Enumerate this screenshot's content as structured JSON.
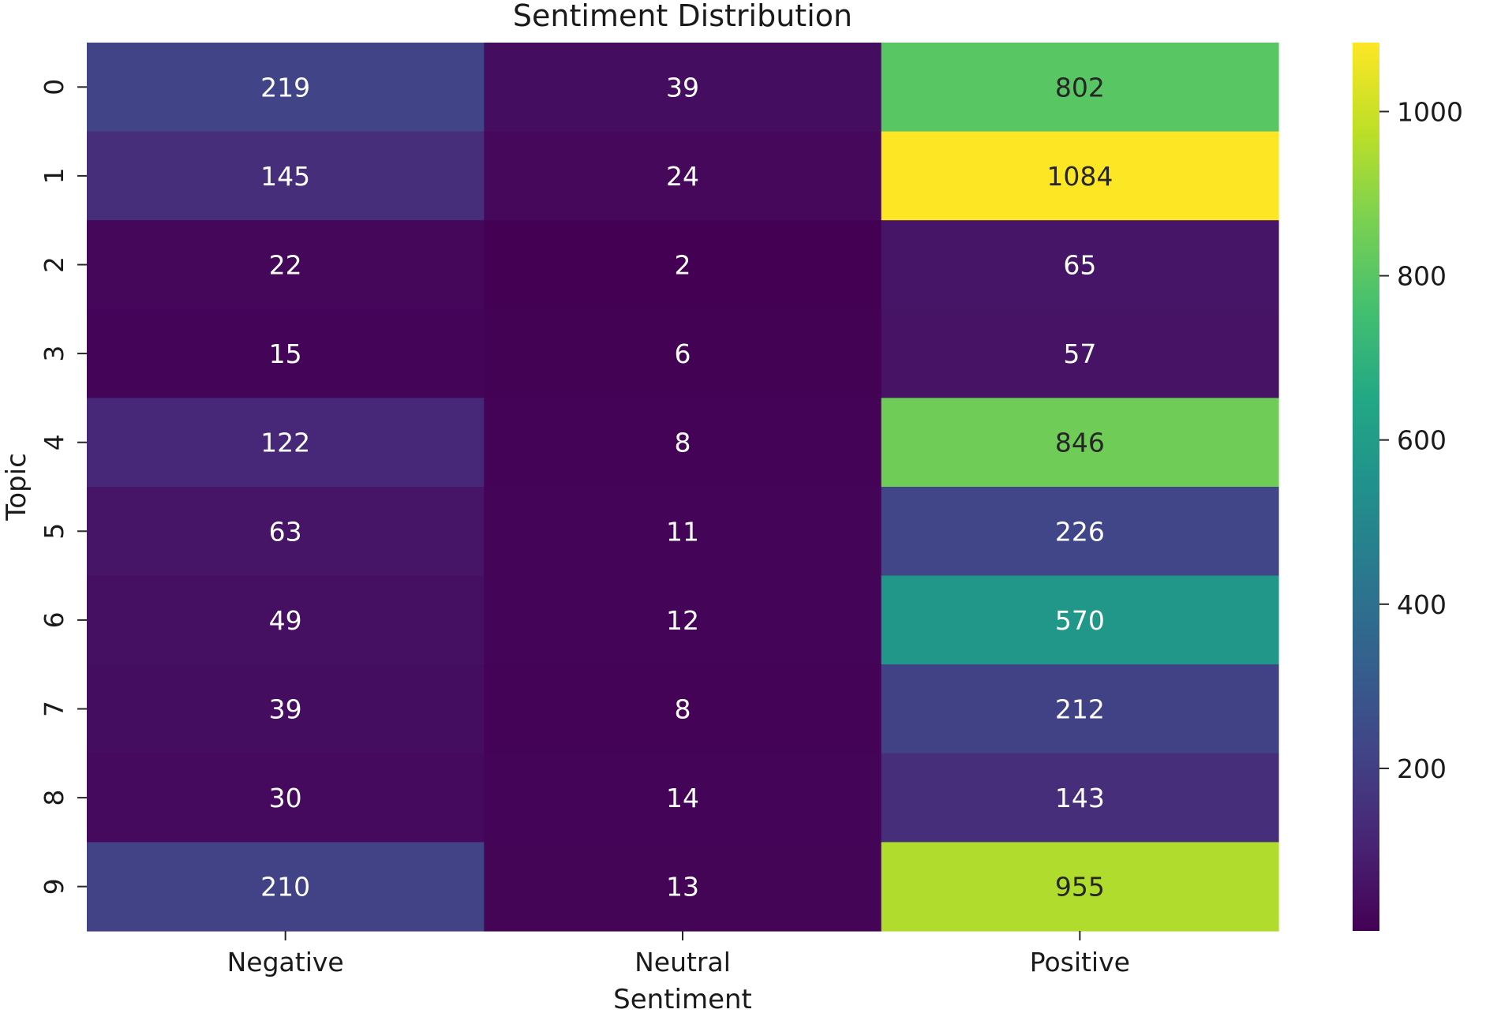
{
  "chart_data": {
    "type": "heatmap",
    "title": "Sentiment Distribution",
    "xlabel": "Sentiment",
    "ylabel": "Topic",
    "x_categories": [
      "Negative",
      "Neutral",
      "Positive"
    ],
    "y_categories": [
      "0",
      "1",
      "2",
      "3",
      "4",
      "5",
      "6",
      "7",
      "8",
      "9"
    ],
    "values": [
      [
        219,
        39,
        802
      ],
      [
        145,
        24,
        1084
      ],
      [
        22,
        2,
        65
      ],
      [
        15,
        6,
        57
      ],
      [
        122,
        8,
        846
      ],
      [
        63,
        11,
        226
      ],
      [
        49,
        12,
        570
      ],
      [
        39,
        8,
        212
      ],
      [
        30,
        14,
        143
      ],
      [
        210,
        13,
        955
      ]
    ],
    "colormap": "viridis",
    "value_range": [
      2,
      1084
    ],
    "colorbar_ticks": [
      200,
      400,
      600,
      800,
      1000
    ],
    "annotations": true
  }
}
